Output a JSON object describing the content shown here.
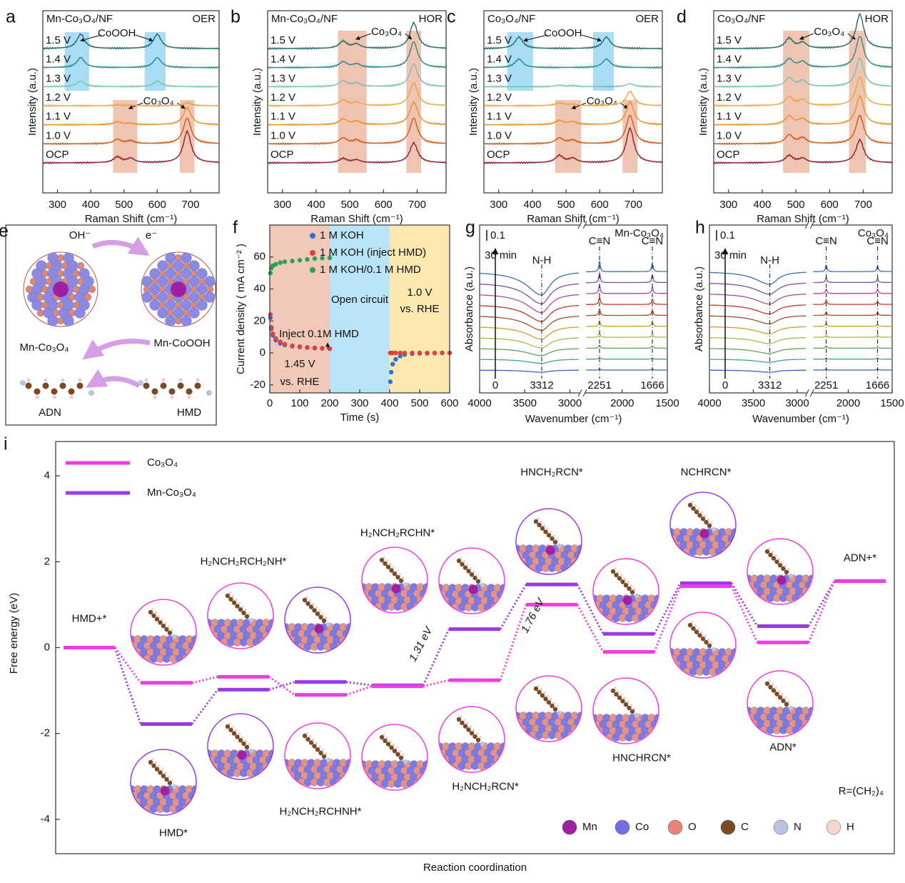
{
  "chart_data": [
    {
      "type": "raman",
      "panel_label": "a",
      "title": "Mn-Co₃O₄/NF",
      "subtitle": "OER",
      "xlabel": "Raman Shift (cm⁻¹)",
      "ylabel": "Intensity (a.u.)",
      "xlim": [
        256,
        786
      ],
      "xticks": [
        300,
        400,
        500,
        600,
        700
      ],
      "peak_positions": [
        370,
        480,
        520,
        600,
        690
      ],
      "bands": [
        {
          "label": "CoOOH",
          "color": "#a9ddf5",
          "label_color": "#2030c0",
          "ranges": [
            [
              322,
              395
            ],
            [
              562,
              625
            ]
          ]
        },
        {
          "label": "Co₃O₄",
          "color": "#f0c4b2",
          "label_color": "#e02020",
          "ranges": [
            [
              467,
              540
            ],
            [
              668,
              712
            ]
          ]
        }
      ],
      "series": [
        {
          "name": "1.5 V",
          "color": "#1e6a6a",
          "values": [
            0.5,
            0,
            0,
            0.5,
            0
          ]
        },
        {
          "name": "1.4 V",
          "color": "#2a8c82",
          "values": [
            0.35,
            0,
            0,
            0.35,
            0
          ]
        },
        {
          "name": "1.3 V",
          "color": "#79c2ad",
          "values": [
            0.2,
            0,
            0,
            0.2,
            0
          ]
        },
        {
          "name": "1.2 V",
          "color": "#e4a843",
          "values": [
            0,
            0.03,
            0.02,
            0,
            0.1
          ]
        },
        {
          "name": "1.1 V",
          "color": "#e89125",
          "values": [
            0,
            0.1,
            0.05,
            0,
            0.6
          ]
        },
        {
          "name": "1.0 V",
          "color": "#cf5a12",
          "values": [
            0,
            0.15,
            0.1,
            0,
            0.9
          ]
        },
        {
          "name": "OCP",
          "color": "#8c1c2e",
          "values": [
            0,
            0.2,
            0.15,
            0,
            1.1
          ]
        }
      ]
    },
    {
      "type": "raman",
      "panel_label": "b",
      "title": "Mn-Co₃O₄/NF",
      "subtitle": "HOR",
      "xlabel": "Raman Shift (cm⁻¹)",
      "ylabel": "Intensity (a.u.)",
      "xlim": [
        256,
        786
      ],
      "xticks": [
        300,
        400,
        500,
        600,
        700
      ],
      "peak_positions": [
        480,
        520,
        690
      ],
      "bands": [
        {
          "label": "Co₃O₄",
          "color": "#f0c4b2",
          "label_color": "#e02020",
          "ranges": [
            [
              465,
              550
            ],
            [
              668,
              712
            ]
          ]
        }
      ],
      "series": [
        {
          "name": "1.5 V",
          "color": "#1e6a6a",
          "values": [
            0.25,
            0.15,
            0.9
          ]
        },
        {
          "name": "1.4 V",
          "color": "#2a8c82",
          "values": [
            0.2,
            0.12,
            0.9
          ]
        },
        {
          "name": "1.3 V",
          "color": "#79c2ad",
          "values": [
            0.2,
            0.12,
            0.8
          ]
        },
        {
          "name": "1.2 V",
          "color": "#e4a843",
          "values": [
            0.2,
            0.12,
            0.8
          ]
        },
        {
          "name": "1.1 V",
          "color": "#e89125",
          "values": [
            0.2,
            0.12,
            0.8
          ]
        },
        {
          "name": "1.0 V",
          "color": "#cf5a12",
          "values": [
            0.2,
            0.12,
            0.9
          ]
        },
        {
          "name": "OCP",
          "color": "#8c1c2e",
          "values": [
            0.15,
            0.1,
            0.7
          ]
        }
      ]
    },
    {
      "type": "raman",
      "panel_label": "c",
      "title": "Co₃O₄/NF",
      "subtitle": "OER",
      "xlabel": "Raman Shift (cm⁻¹)",
      "ylabel": "Intensity (a.u.)",
      "xlim": [
        256,
        786
      ],
      "xticks": [
        300,
        400,
        500,
        600,
        700
      ],
      "peak_positions": [
        360,
        480,
        520,
        620,
        690
      ],
      "bands": [
        {
          "label": "CoOOH",
          "color": "#a9ddf5",
          "label_color": "#2030c0",
          "ranges": [
            [
              325,
              402
            ],
            [
              580,
              642
            ]
          ]
        },
        {
          "label": "Co₃O₄",
          "color": "#f0c4b2",
          "label_color": "#e02020",
          "ranges": [
            [
              468,
              545
            ],
            [
              668,
              712
            ]
          ]
        }
      ],
      "series": [
        {
          "name": "1.5 V",
          "color": "#1e6a6a",
          "values": [
            0.4,
            0,
            0,
            0.4,
            0
          ]
        },
        {
          "name": "1.4 V",
          "color": "#2a8c82",
          "values": [
            0.3,
            0,
            0,
            0.3,
            0
          ]
        },
        {
          "name": "1.3 V",
          "color": "#79c2ad",
          "values": [
            0,
            0.05,
            0.03,
            0,
            0.1
          ]
        },
        {
          "name": "1.2 V",
          "color": "#e4a843",
          "values": [
            0,
            0.1,
            0.05,
            0,
            0.5
          ]
        },
        {
          "name": "1.1 V",
          "color": "#e89125",
          "values": [
            0,
            0.15,
            0.1,
            0,
            0.8
          ]
        },
        {
          "name": "1.0 V",
          "color": "#cf5a12",
          "values": [
            0,
            0.2,
            0.12,
            0,
            1.0
          ]
        },
        {
          "name": "OCP",
          "color": "#8c1c2e",
          "values": [
            0,
            0.25,
            0.15,
            0,
            1.2
          ]
        }
      ]
    },
    {
      "type": "raman",
      "panel_label": "d",
      "title": "Co₃O₄/NF",
      "subtitle": "HOR",
      "xlabel": "Raman Shift (cm⁻¹)",
      "ylabel": "Intensity (a.u.)",
      "xlim": [
        256,
        786
      ],
      "xticks": [
        300,
        400,
        500,
        600,
        700
      ],
      "peak_positions": [
        480,
        520,
        690
      ],
      "bands": [
        {
          "label": "Co₃O₄",
          "color": "#f0c4b2",
          "label_color": "#e02020",
          "ranges": [
            [
              462,
              540
            ],
            [
              658,
              708
            ]
          ]
        }
      ],
      "series": [
        {
          "name": "1.5 V",
          "color": "#1e6a6a",
          "values": [
            0.35,
            0.2,
            1.2
          ]
        },
        {
          "name": "1.4 V",
          "color": "#2a8c82",
          "values": [
            0.3,
            0.2,
            1.1
          ]
        },
        {
          "name": "1.3 V",
          "color": "#79c2ad",
          "values": [
            0.3,
            0.2,
            1.0
          ]
        },
        {
          "name": "1.2 V",
          "color": "#e4a843",
          "values": [
            0.3,
            0.2,
            1.0
          ]
        },
        {
          "name": "1.1 V",
          "color": "#e89125",
          "values": [
            0.3,
            0.2,
            1.0
          ]
        },
        {
          "name": "1.0 V",
          "color": "#cf5a12",
          "values": [
            0.3,
            0.2,
            1.0
          ]
        },
        {
          "name": "OCP",
          "color": "#8c1c2e",
          "values": [
            0.25,
            0.15,
            0.8
          ]
        }
      ]
    },
    {
      "type": "scatter",
      "panel_label": "f",
      "xlabel": "Time (s)",
      "ylabel": "Current density ( mA cm⁻² )",
      "xlim": [
        0,
        600
      ],
      "xticks": [
        0,
        100,
        200,
        300,
        400,
        500,
        600
      ],
      "ylim": [
        -25,
        80
      ],
      "yticks": [
        -20,
        0,
        20,
        40,
        60
      ],
      "regions": [
        {
          "range": [
            0,
            200
          ],
          "color": "#f2c9b8"
        },
        {
          "range": [
            200,
            400
          ],
          "color": "#b9e3f7"
        },
        {
          "range": [
            400,
            600
          ],
          "color": "#fbe7b0"
        }
      ],
      "annotations": [
        "Open circuit",
        "Inject 0.1M HMD",
        "1.45 V",
        "vs. RHE",
        "1.0 V",
        "vs. RHE"
      ],
      "x": [
        2,
        5,
        10,
        20,
        35,
        50,
        75,
        100,
        125,
        150,
        175,
        200,
        402,
        405,
        410,
        420,
        435,
        450,
        475,
        500,
        525,
        550,
        575,
        600
      ],
      "series": [
        {
          "name": "1 M KOH",
          "color": "#2f6fd6",
          "values": [
            22,
            15,
            11,
            8,
            6,
            5,
            4.2,
            3.7,
            3.3,
            3,
            2.8,
            2.6,
            -18,
            -12,
            -7,
            -4,
            -2,
            -1,
            -0.5,
            -0.3,
            -0.2,
            -0.1,
            0,
            0
          ]
        },
        {
          "name": "1 M KOH (inject HMD)",
          "color": "#e0403a",
          "values": [
            24,
            16,
            12,
            9,
            7,
            5.5,
            4.5,
            4,
            3.5,
            3.2,
            3,
            2.8,
            0,
            0,
            0,
            0,
            0,
            0,
            0,
            0,
            0,
            0,
            0,
            0
          ]
        },
        {
          "name": "1 M KOH/0.1 M HMD",
          "color": "#2aa060",
          "values": [
            50,
            53,
            54.5,
            55.5,
            56.5,
            57,
            57.5,
            58,
            58.5,
            59,
            59.3,
            59.5,
            null,
            null,
            null,
            null,
            null,
            null,
            null,
            null,
            null,
            null,
            null,
            null
          ]
        }
      ]
    },
    {
      "type": "ir",
      "panel_label": "g",
      "title": "Mn-Co₃O₄",
      "xlabel": "Wavenumber (cm⁻¹)",
      "ylabel": "Absorbance (a.u.)",
      "xlim": [
        4000,
        1500
      ],
      "x_break": [
        2900,
        2400
      ],
      "xticks": [
        4000,
        3500,
        3000,
        2000,
        1500
      ],
      "scale_bar": {
        "label": "0.1",
        "value": 0.1
      },
      "time_labels": [
        "30 min",
        "0"
      ],
      "markers": [
        {
          "value": 3312,
          "name": "N-H"
        },
        {
          "value": 2251,
          "name": "C≡N"
        },
        {
          "value": 1666,
          "name": "C≡N"
        }
      ],
      "series": [
        {
          "color": "#3a6fb5",
          "values": [
            -0.22,
            0.1,
            0.08
          ]
        },
        {
          "color": "#7b52a8",
          "values": [
            -0.2,
            0.09,
            0.07
          ]
        },
        {
          "color": "#b04aa0",
          "values": [
            -0.18,
            0.08,
            0.06
          ]
        },
        {
          "color": "#c0392b",
          "values": [
            -0.16,
            0.07,
            0.05
          ]
        },
        {
          "color": "#a0522d",
          "values": [
            -0.14,
            0.06,
            0.05
          ]
        },
        {
          "color": "#c8a030",
          "values": [
            -0.12,
            0.05,
            0.04
          ]
        },
        {
          "color": "#a8b84a",
          "values": [
            -0.1,
            0.04,
            0.03
          ]
        },
        {
          "color": "#5aa55a",
          "values": [
            -0.07,
            0.03,
            0.02
          ]
        },
        {
          "color": "#3ba3a3",
          "values": [
            -0.04,
            0.02,
            0.01
          ]
        },
        {
          "color": "#2e6db5",
          "values": [
            -0.02,
            0.01,
            0.01
          ]
        }
      ]
    },
    {
      "type": "ir",
      "panel_label": "h",
      "title": "Co₃O₄",
      "xlabel": "Wavenumber (cm⁻¹)",
      "ylabel": "Absorbance (a.u.)",
      "xlim": [
        4000,
        1500
      ],
      "x_break": [
        2900,
        2400
      ],
      "xticks": [
        4000,
        3500,
        3000,
        2000,
        1500
      ],
      "scale_bar": {
        "label": "0.1",
        "value": 0.1
      },
      "time_labels": [
        "30 min",
        "0"
      ],
      "markers": [
        {
          "value": 3312,
          "name": "N-H"
        },
        {
          "value": 2251,
          "name": "C≡N"
        },
        {
          "value": 1666,
          "name": "C≡N"
        }
      ],
      "series": [
        {
          "color": "#3a6fb5",
          "values": [
            -0.12,
            0.06,
            0.05
          ]
        },
        {
          "color": "#7b52a8",
          "values": [
            -0.11,
            0.05,
            0.04
          ]
        },
        {
          "color": "#b04aa0",
          "values": [
            -0.1,
            0.04,
            0.04
          ]
        },
        {
          "color": "#c0392b",
          "values": [
            -0.09,
            0.04,
            0.03
          ]
        },
        {
          "color": "#a0522d",
          "values": [
            -0.08,
            0.03,
            0.03
          ]
        },
        {
          "color": "#c8a030",
          "values": [
            -0.07,
            0.03,
            0.02
          ]
        },
        {
          "color": "#a8b84a",
          "values": [
            -0.06,
            0.02,
            0.02
          ]
        },
        {
          "color": "#5aa55a",
          "values": [
            -0.05,
            0.02,
            0.01
          ]
        },
        {
          "color": "#3ba3a3",
          "values": [
            -0.03,
            0.01,
            0.01
          ]
        },
        {
          "color": "#2e6db5",
          "values": [
            -0.02,
            0.01,
            0.01
          ]
        }
      ]
    },
    {
      "type": "energy",
      "panel_label": "i",
      "xlabel": "Reaction coordination",
      "ylabel": "Free energy (eV)",
      "ylim": [
        -4.8,
        4.8
      ],
      "yticks": [
        -4,
        -2,
        0,
        2,
        4
      ],
      "categories": [
        "HMD+*",
        "HMD*",
        "H₂NCH₂RCH₂NH*",
        "H₂NCH₂RCHNH*",
        "H₂NCH₂RCHN*",
        "H₂NCH₂RCN*",
        "HNCH₂RCN*",
        "HNCHRCN*",
        "NCHRCN*",
        "ADN*",
        "ADN+*"
      ],
      "series": [
        {
          "name": "Mn-Co₃O₄",
          "color": "#9a3ae6",
          "values": [
            0,
            -1.78,
            -0.98,
            -0.8,
            -0.88,
            0.43,
            1.47,
            0.32,
            1.5,
            0.5,
            1.55
          ]
        },
        {
          "name": "Co₃O₄",
          "color": "#f03ce0",
          "values": [
            0,
            -0.82,
            -0.68,
            -1.1,
            -0.9,
            -0.76,
            1.0,
            -0.1,
            1.43,
            0.12,
            1.55
          ]
        }
      ],
      "annotations": [
        "1.31 eV",
        "1.76 eV"
      ],
      "note": "R=(CH₂)₄",
      "element_legend": [
        {
          "name": "Mn",
          "color": "#a020a0"
        },
        {
          "name": "Co",
          "color": "#6f6fe6"
        },
        {
          "name": "O",
          "color": "#e8827a"
        },
        {
          "name": "C",
          "color": "#7a4a25"
        },
        {
          "name": "N",
          "color": "#b8c4e0"
        },
        {
          "name": "H",
          "color": "#f2d6d0"
        }
      ]
    }
  ],
  "diagram_e": {
    "panel_label": "e",
    "hydroxide": "OH⁻",
    "electron": "e⁻",
    "left_catalyst": "Mn-Co₃O₄",
    "right_catalyst": "Mn-CoOOH",
    "product": "ADN",
    "reactant": "HMD"
  }
}
